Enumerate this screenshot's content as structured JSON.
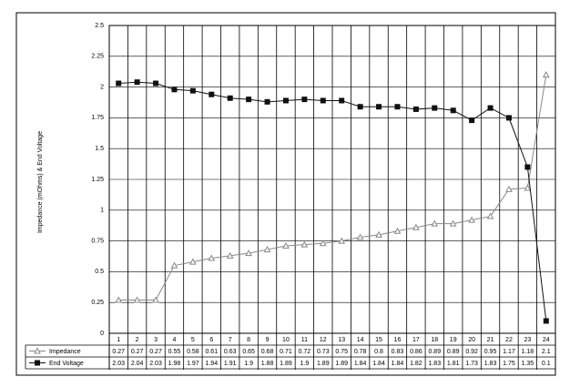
{
  "chart_data": {
    "type": "line",
    "y_label": "Impedance (mOhms) & End Voltage",
    "categories": [
      "1",
      "2",
      "3",
      "4",
      "5",
      "6",
      "7",
      "8",
      "9",
      "10",
      "11",
      "12",
      "13",
      "14",
      "15",
      "16",
      "17",
      "18",
      "19",
      "20",
      "21",
      "22",
      "23",
      "24"
    ],
    "series": [
      {
        "name": "Impedance",
        "color": "#888888",
        "marker": "triangle",
        "values": [
          0.27,
          0.27,
          0.27,
          0.55,
          0.58,
          0.61,
          0.63,
          0.65,
          0.68,
          0.71,
          0.72,
          0.73,
          0.75,
          0.78,
          0.8,
          0.83,
          0.86,
          0.89,
          0.89,
          0.92,
          0.95,
          1.17,
          1.18,
          2.1
        ]
      },
      {
        "name": "End Voltage",
        "color": "#111111",
        "marker": "square",
        "values": [
          2.03,
          2.04,
          2.03,
          1.98,
          1.97,
          1.94,
          1.91,
          1.9,
          1.88,
          1.89,
          1.9,
          1.89,
          1.89,
          1.84,
          1.84,
          1.84,
          1.82,
          1.83,
          1.81,
          1.73,
          1.83,
          1.75,
          1.35,
          0.1
        ]
      }
    ],
    "ylim": [
      0,
      2.5
    ],
    "yticks": [
      0,
      0.25,
      0.5,
      0.75,
      1,
      1.25,
      1.5,
      1.75,
      2,
      2.25,
      2.5
    ],
    "grid": true,
    "data_table": true
  }
}
